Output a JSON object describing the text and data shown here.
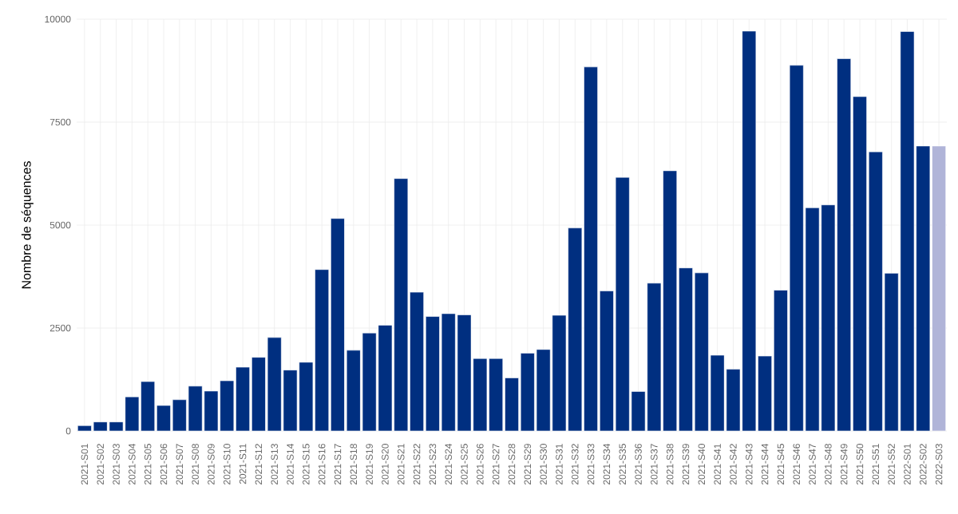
{
  "chart_data": {
    "type": "bar",
    "ylabel": "Nombre de séquences",
    "categories": [
      "2021-S01",
      "2021-S02",
      "2021-S03",
      "2021-S04",
      "2021-S05",
      "2021-S06",
      "2021-S07",
      "2021-S08",
      "2021-S09",
      "2021-S10",
      "2021-S11",
      "2021-S12",
      "2021-S13",
      "2021-S14",
      "2021-S15",
      "2021-S16",
      "2021-S17",
      "2021-S18",
      "2021-S19",
      "2021-S20",
      "2021-S21",
      "2021-S22",
      "2021-S23",
      "2021-S24",
      "2021-S25",
      "2021-S26",
      "2021-S27",
      "2021-S28",
      "2021-S29",
      "2021-S30",
      "2021-S31",
      "2021-S32",
      "2021-S33",
      "2021-S34",
      "2021-S35",
      "2021-S36",
      "2021-S37",
      "2021-S38",
      "2021-S39",
      "2021-S40",
      "2021-S41",
      "2021-S42",
      "2021-S43",
      "2021-S44",
      "2021-S45",
      "2021-S46",
      "2021-S47",
      "2021-S48",
      "2021-S49",
      "2021-S50",
      "2021-S51",
      "2021-S52",
      "2022-S01",
      "2022-S02",
      "2022-S03"
    ],
    "values": [
      130,
      220,
      220,
      830,
      1200,
      620,
      760,
      1090,
      970,
      1220,
      1550,
      1790,
      2270,
      1480,
      1670,
      3920,
      5160,
      1960,
      2380,
      2570,
      6130,
      3370,
      2780,
      2850,
      2820,
      1760,
      1760,
      1290,
      1890,
      1980,
      2810,
      4930,
      8840,
      3400,
      6160,
      960,
      3590,
      6320,
      3960,
      3840,
      1840,
      1500,
      9710,
      1820,
      3420,
      8880,
      5420,
      5490,
      9040,
      8120,
      6780,
      3830,
      9700,
      6920,
      6920
    ],
    "colors": [
      "#002f80",
      "#002f80",
      "#002f80",
      "#002f80",
      "#002f80",
      "#002f80",
      "#002f80",
      "#002f80",
      "#002f80",
      "#002f80",
      "#002f80",
      "#002f80",
      "#002f80",
      "#002f80",
      "#002f80",
      "#002f80",
      "#002f80",
      "#002f80",
      "#002f80",
      "#002f80",
      "#002f80",
      "#002f80",
      "#002f80",
      "#002f80",
      "#002f80",
      "#002f80",
      "#002f80",
      "#002f80",
      "#002f80",
      "#002f80",
      "#002f80",
      "#002f80",
      "#002f80",
      "#002f80",
      "#002f80",
      "#002f80",
      "#002f80",
      "#002f80",
      "#002f80",
      "#002f80",
      "#002f80",
      "#002f80",
      "#002f80",
      "#002f80",
      "#002f80",
      "#002f80",
      "#002f80",
      "#002f80",
      "#002f80",
      "#002f80",
      "#002f80",
      "#002f80",
      "#002f80",
      "#002f80",
      "#b0b4d8"
    ],
    "ylim": [
      0,
      10000
    ],
    "yticks": [
      0,
      2500,
      5000,
      7500,
      10000
    ],
    "grid": true
  }
}
